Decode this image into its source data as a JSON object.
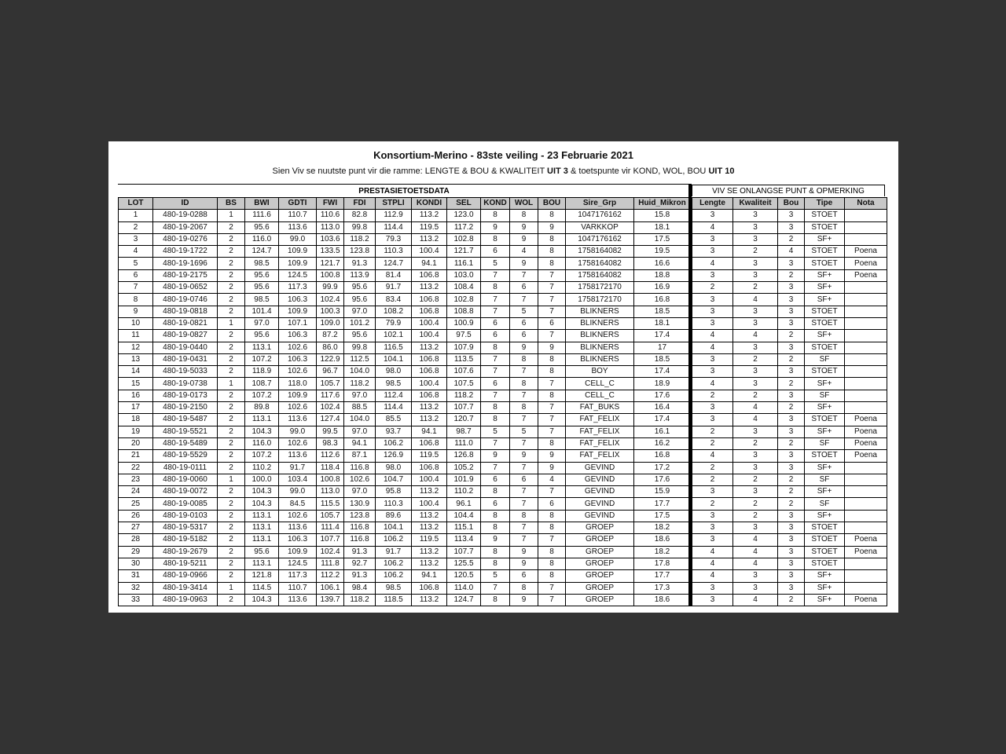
{
  "title": "Konsortium-Merino - 83ste veiling - 23 Februarie 2021",
  "subtitle": {
    "part1": "Sien Viv se nuutste punt vir die ramme: LENGTE & BOU & KWALITEIT ",
    "bold1": "UIT 3",
    "part2": " & toetspunte vir KOND, WOL, BOU ",
    "bold2": "UIT 10"
  },
  "group_left": "PRESTASIETOETSDATA",
  "group_right": "VIV SE ONLANGSE PUNT & OPMERKING",
  "columns_left": [
    "LOT",
    "ID",
    "BS",
    "BWI",
    "GDTI",
    "FWI",
    "FDI",
    "STPLI",
    "KONDI",
    "SEL",
    "KOND",
    "WOL",
    "BOU",
    "Sire_Grp",
    "Huid_Mikron"
  ],
  "columns_right": [
    "Lengte",
    "Kwaliteit",
    "Bou",
    "Tipe",
    "Nota"
  ],
  "rows": [
    [
      "1",
      "480-19-0288",
      "1",
      "111.6",
      "110.7",
      "110.6",
      "82.8",
      "112.9",
      "113.2",
      "123.0",
      "8",
      "8",
      "8",
      "1047176162",
      "15.8",
      "3",
      "3",
      "3",
      "STOET",
      ""
    ],
    [
      "2",
      "480-19-2067",
      "2",
      "95.6",
      "113.6",
      "113.0",
      "99.8",
      "114.4",
      "119.5",
      "117.2",
      "9",
      "9",
      "9",
      "VARKKOP",
      "18.1",
      "4",
      "3",
      "3",
      "STOET",
      ""
    ],
    [
      "3",
      "480-19-0276",
      "2",
      "116.0",
      "99.0",
      "103.6",
      "118.2",
      "79.3",
      "113.2",
      "102.8",
      "8",
      "9",
      "8",
      "1047176162",
      "17.5",
      "3",
      "3",
      "2",
      "SF+",
      ""
    ],
    [
      "4",
      "480-19-1722",
      "2",
      "124.7",
      "109.9",
      "133.5",
      "123.8",
      "110.3",
      "100.4",
      "121.7",
      "6",
      "4",
      "8",
      "1758164082",
      "19.5",
      "3",
      "2",
      "4",
      "STOET",
      "Poena"
    ],
    [
      "5",
      "480-19-1696",
      "2",
      "98.5",
      "109.9",
      "121.7",
      "91.3",
      "124.7",
      "94.1",
      "116.1",
      "5",
      "9",
      "8",
      "1758164082",
      "16.6",
      "4",
      "3",
      "3",
      "STOET",
      "Poena"
    ],
    [
      "6",
      "480-19-2175",
      "2",
      "95.6",
      "124.5",
      "100.8",
      "113.9",
      "81.4",
      "106.8",
      "103.0",
      "7",
      "7",
      "7",
      "1758164082",
      "18.8",
      "3",
      "3",
      "2",
      "SF+",
      "Poena"
    ],
    [
      "7",
      "480-19-0652",
      "2",
      "95.6",
      "117.3",
      "99.9",
      "95.6",
      "91.7",
      "113.2",
      "108.4",
      "8",
      "6",
      "7",
      "1758172170",
      "16.9",
      "2",
      "2",
      "3",
      "SF+",
      ""
    ],
    [
      "8",
      "480-19-0746",
      "2",
      "98.5",
      "106.3",
      "102.4",
      "95.6",
      "83.4",
      "106.8",
      "102.8",
      "7",
      "7",
      "7",
      "1758172170",
      "16.8",
      "3",
      "4",
      "3",
      "SF+",
      ""
    ],
    [
      "9",
      "480-19-0818",
      "2",
      "101.4",
      "109.9",
      "100.3",
      "97.0",
      "108.2",
      "106.8",
      "108.8",
      "7",
      "5",
      "7",
      "BLIKNERS",
      "18.5",
      "3",
      "3",
      "3",
      "STOET",
      ""
    ],
    [
      "10",
      "480-19-0821",
      "1",
      "97.0",
      "107.1",
      "109.0",
      "101.2",
      "79.9",
      "100.4",
      "100.9",
      "6",
      "6",
      "6",
      "BLIKNERS",
      "18.1",
      "3",
      "3",
      "3",
      "STOET",
      ""
    ],
    [
      "11",
      "480-19-0827",
      "2",
      "95.6",
      "106.3",
      "87.2",
      "95.6",
      "102.1",
      "100.4",
      "97.5",
      "6",
      "6",
      "7",
      "BLIKNERS",
      "17.4",
      "4",
      "4",
      "2",
      "SF+",
      ""
    ],
    [
      "12",
      "480-19-0440",
      "2",
      "113.1",
      "102.6",
      "86.0",
      "99.8",
      "116.5",
      "113.2",
      "107.9",
      "8",
      "9",
      "9",
      "BLIKNERS",
      "17",
      "4",
      "3",
      "3",
      "STOET",
      ""
    ],
    [
      "13",
      "480-19-0431",
      "2",
      "107.2",
      "106.3",
      "122.9",
      "112.5",
      "104.1",
      "106.8",
      "113.5",
      "7",
      "8",
      "8",
      "BLIKNERS",
      "18.5",
      "3",
      "2",
      "2",
      "SF",
      ""
    ],
    [
      "14",
      "480-19-5033",
      "2",
      "118.9",
      "102.6",
      "96.7",
      "104.0",
      "98.0",
      "106.8",
      "107.6",
      "7",
      "7",
      "8",
      "BOY",
      "17.4",
      "3",
      "3",
      "3",
      "STOET",
      ""
    ],
    [
      "15",
      "480-19-0738",
      "1",
      "108.7",
      "118.0",
      "105.7",
      "118.2",
      "98.5",
      "100.4",
      "107.5",
      "6",
      "8",
      "7",
      "CELL_C",
      "18.9",
      "4",
      "3",
      "2",
      "SF+",
      ""
    ],
    [
      "16",
      "480-19-0173",
      "2",
      "107.2",
      "109.9",
      "117.6",
      "97.0",
      "112.4",
      "106.8",
      "118.2",
      "7",
      "7",
      "8",
      "CELL_C",
      "17.6",
      "2",
      "2",
      "3",
      "SF",
      ""
    ],
    [
      "17",
      "480-19-2150",
      "2",
      "89.8",
      "102.6",
      "102.4",
      "88.5",
      "114.4",
      "113.2",
      "107.7",
      "8",
      "8",
      "7",
      "FAT_BUKS",
      "16.4",
      "3",
      "4",
      "2",
      "SF+",
      ""
    ],
    [
      "18",
      "480-19-5487",
      "2",
      "113.1",
      "113.6",
      "127.4",
      "104.0",
      "85.5",
      "113.2",
      "120.7",
      "8",
      "7",
      "7",
      "FAT_FELIX",
      "17.4",
      "3",
      "4",
      "3",
      "STOET",
      "Poena"
    ],
    [
      "19",
      "480-19-5521",
      "2",
      "104.3",
      "99.0",
      "99.5",
      "97.0",
      "93.7",
      "94.1",
      "98.7",
      "5",
      "5",
      "7",
      "FAT_FELIX",
      "16.1",
      "2",
      "3",
      "3",
      "SF+",
      "Poena"
    ],
    [
      "20",
      "480-19-5489",
      "2",
      "116.0",
      "102.6",
      "98.3",
      "94.1",
      "106.2",
      "106.8",
      "111.0",
      "7",
      "7",
      "8",
      "FAT_FELIX",
      "16.2",
      "2",
      "2",
      "2",
      "SF",
      "Poena"
    ],
    [
      "21",
      "480-19-5529",
      "2",
      "107.2",
      "113.6",
      "112.6",
      "87.1",
      "126.9",
      "119.5",
      "126.8",
      "9",
      "9",
      "9",
      "FAT_FELIX",
      "16.8",
      "4",
      "3",
      "3",
      "STOET",
      "Poena"
    ],
    [
      "22",
      "480-19-0111",
      "2",
      "110.2",
      "91.7",
      "118.4",
      "116.8",
      "98.0",
      "106.8",
      "105.2",
      "7",
      "7",
      "9",
      "GEVIND",
      "17.2",
      "2",
      "3",
      "3",
      "SF+",
      ""
    ],
    [
      "23",
      "480-19-0060",
      "1",
      "100.0",
      "103.4",
      "100.8",
      "102.6",
      "104.7",
      "100.4",
      "101.9",
      "6",
      "6",
      "4",
      "GEVIND",
      "17.6",
      "2",
      "2",
      "2",
      "SF",
      ""
    ],
    [
      "24",
      "480-19-0072",
      "2",
      "104.3",
      "99.0",
      "113.0",
      "97.0",
      "95.8",
      "113.2",
      "110.2",
      "8",
      "7",
      "7",
      "GEVIND",
      "15.9",
      "3",
      "3",
      "2",
      "SF+",
      ""
    ],
    [
      "25",
      "480-19-0085",
      "2",
      "104.3",
      "84.5",
      "115.5",
      "130.9",
      "110.3",
      "100.4",
      "96.1",
      "6",
      "7",
      "6",
      "GEVIND",
      "17.7",
      "2",
      "2",
      "2",
      "SF",
      ""
    ],
    [
      "26",
      "480-19-0103",
      "2",
      "113.1",
      "102.6",
      "105.7",
      "123.8",
      "89.6",
      "113.2",
      "104.4",
      "8",
      "8",
      "8",
      "GEVIND",
      "17.5",
      "3",
      "2",
      "3",
      "SF+",
      ""
    ],
    [
      "27",
      "480-19-5317",
      "2",
      "113.1",
      "113.6",
      "111.4",
      "116.8",
      "104.1",
      "113.2",
      "115.1",
      "8",
      "7",
      "8",
      "GROEP",
      "18.2",
      "3",
      "3",
      "3",
      "STOET",
      ""
    ],
    [
      "28",
      "480-19-5182",
      "2",
      "113.1",
      "106.3",
      "107.7",
      "116.8",
      "106.2",
      "119.5",
      "113.4",
      "9",
      "7",
      "7",
      "GROEP",
      "18.6",
      "3",
      "4",
      "3",
      "STOET",
      "Poena"
    ],
    [
      "29",
      "480-19-2679",
      "2",
      "95.6",
      "109.9",
      "102.4",
      "91.3",
      "91.7",
      "113.2",
      "107.7",
      "8",
      "9",
      "8",
      "GROEP",
      "18.2",
      "4",
      "4",
      "3",
      "STOET",
      "Poena"
    ],
    [
      "30",
      "480-19-5211",
      "2",
      "113.1",
      "124.5",
      "111.8",
      "92.7",
      "106.2",
      "113.2",
      "125.5",
      "8",
      "9",
      "8",
      "GROEP",
      "17.8",
      "4",
      "4",
      "3",
      "STOET",
      ""
    ],
    [
      "31",
      "480-19-0966",
      "2",
      "121.8",
      "117.3",
      "112.2",
      "91.3",
      "106.2",
      "94.1",
      "120.5",
      "5",
      "6",
      "8",
      "GROEP",
      "17.7",
      "4",
      "3",
      "3",
      "SF+",
      ""
    ],
    [
      "32",
      "480-19-3414",
      "1",
      "114.5",
      "110.7",
      "106.1",
      "98.4",
      "98.5",
      "106.8",
      "114.0",
      "7",
      "8",
      "7",
      "GROEP",
      "17.3",
      "3",
      "3",
      "3",
      "SF+",
      ""
    ],
    [
      "33",
      "480-19-0963",
      "2",
      "104.3",
      "113.6",
      "139.7",
      "118.2",
      "118.5",
      "113.2",
      "124.7",
      "8",
      "9",
      "7",
      "GROEP",
      "18.6",
      "3",
      "4",
      "2",
      "SF+",
      "Poena"
    ]
  ]
}
